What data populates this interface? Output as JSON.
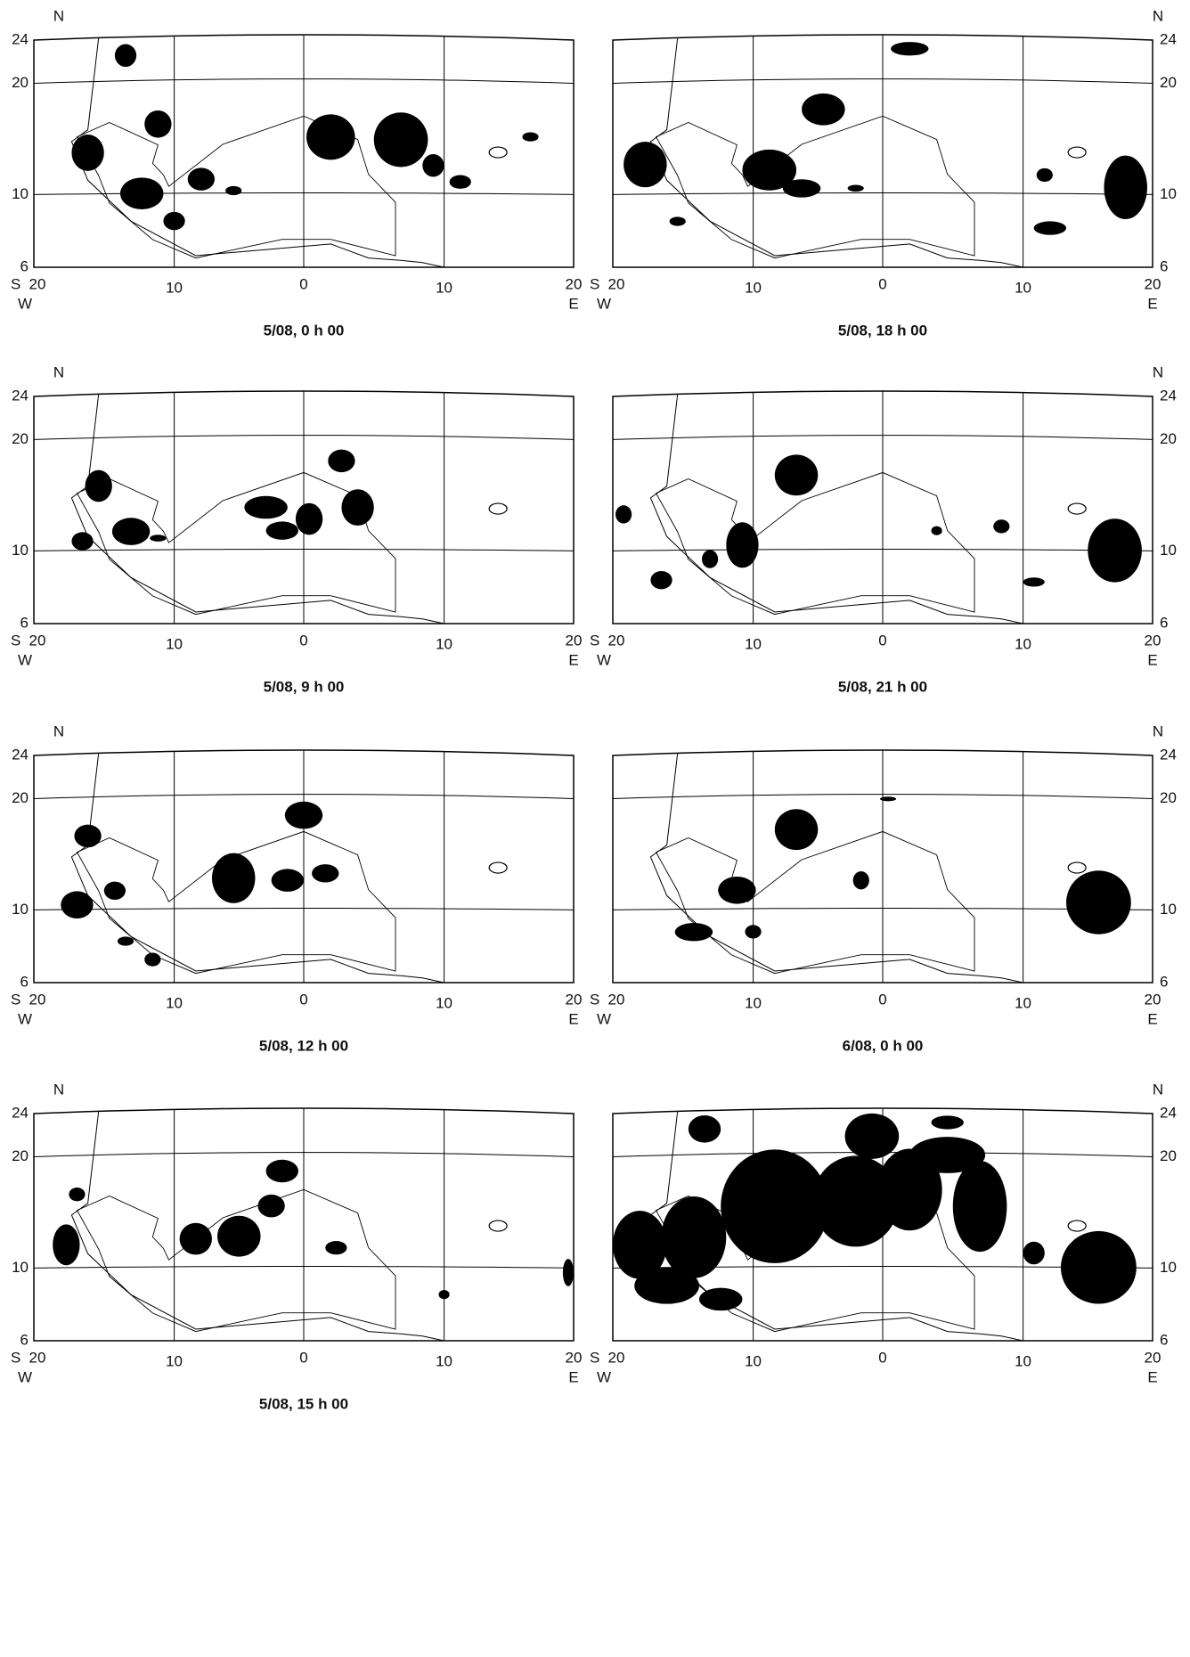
{
  "panels": [
    {
      "caption": "5/08, 0 h 00",
      "north": "N",
      "south": "S",
      "west": "W",
      "east": "E",
      "lat_labels": [
        "24",
        "20",
        "10",
        "6"
      ],
      "lon_labels": [
        "20",
        "10",
        "0",
        "10",
        "20"
      ]
    },
    {
      "caption": "5/08, 18 h 00",
      "north": "N",
      "south": "S",
      "west": "W",
      "east": "E",
      "lat_labels": [
        "24",
        "20",
        "10",
        "6"
      ],
      "lon_labels": [
        "20",
        "10",
        "0",
        "10",
        "20"
      ]
    },
    {
      "caption": "5/08, 9 h 00",
      "north": "N",
      "south": "S",
      "west": "W",
      "east": "E",
      "lat_labels": [
        "24",
        "20",
        "10",
        "6"
      ],
      "lon_labels": [
        "20",
        "10",
        "0",
        "10",
        "20"
      ]
    },
    {
      "caption": "5/08, 21 h 00",
      "north": "N",
      "south": "S",
      "west": "W",
      "east": "E",
      "lat_labels": [
        "24",
        "20",
        "10",
        "6"
      ],
      "lon_labels": [
        "20",
        "10",
        "0",
        "10",
        "20"
      ]
    },
    {
      "caption": "5/08, 12 h 00",
      "north": "N",
      "south": "S",
      "west": "W",
      "east": "E",
      "lat_labels": [
        "24",
        "20",
        "10",
        "6"
      ],
      "lon_labels": [
        "20",
        "10",
        "0",
        "10",
        "20"
      ]
    },
    {
      "caption": "6/08, 0 h 00",
      "north": "N",
      "south": "S",
      "west": "W",
      "east": "E",
      "lat_labels": [
        "24",
        "20",
        "10",
        "6"
      ],
      "lon_labels": [
        "20",
        "10",
        "0",
        "10",
        "20"
      ]
    },
    {
      "caption": "5/08, 15 h 00",
      "north": "N",
      "south": "S",
      "west": "W",
      "east": "E",
      "lat_labels": [
        "24",
        "20",
        "10",
        "6"
      ],
      "lon_labels": [
        "20",
        "10",
        "0",
        "10",
        "20"
      ]
    },
    {
      "caption": "",
      "north": "N",
      "south": "S",
      "west": "W",
      "east": "E",
      "lat_labels": [
        "24",
        "20",
        "10",
        "6"
      ],
      "lon_labels": [
        "20",
        "10",
        "0",
        "10",
        "20"
      ]
    }
  ]
}
